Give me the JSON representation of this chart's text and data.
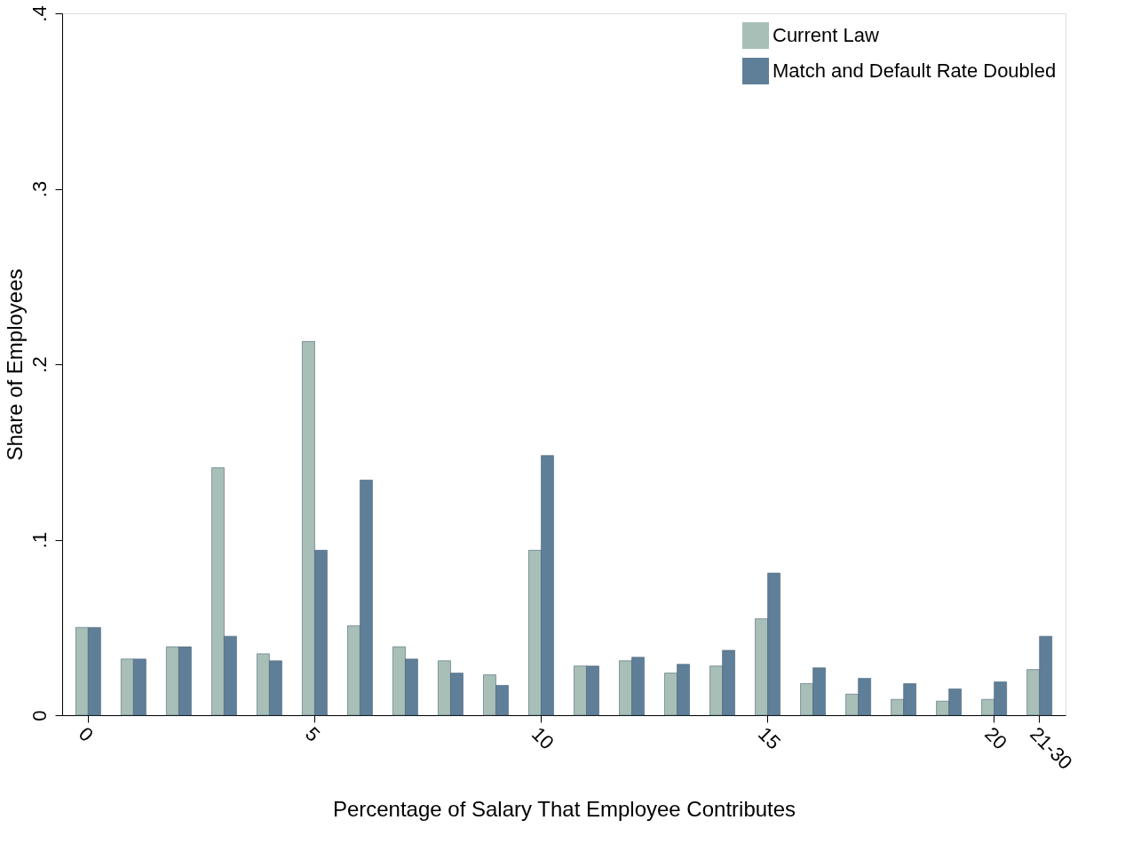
{
  "chart_data": {
    "type": "bar",
    "xlabel": "Percentage of Salary That Employee Contributes",
    "ylabel": "Share of Employees",
    "categories": [
      "0",
      null,
      null,
      null,
      null,
      "5",
      null,
      null,
      null,
      null,
      "10",
      null,
      null,
      null,
      null,
      "15",
      null,
      null,
      null,
      null,
      "20",
      "21-30"
    ],
    "series": [
      {
        "name": "Current Law",
        "color": "#a8bfb8",
        "values": [
          0.05,
          0.032,
          0.039,
          0.141,
          0.035,
          0.213,
          0.051,
          0.039,
          0.031,
          0.023,
          0.094,
          0.028,
          0.031,
          0.024,
          0.028,
          0.055,
          0.018,
          0.012,
          0.009,
          0.008,
          0.009,
          0.026
        ]
      },
      {
        "name": "Match and Default Rate Doubled",
        "color": "#5f7f99",
        "values": [
          0.05,
          0.032,
          0.039,
          0.045,
          0.031,
          0.094,
          0.134,
          0.032,
          0.024,
          0.017,
          0.148,
          0.028,
          0.033,
          0.029,
          0.037,
          0.081,
          0.027,
          0.021,
          0.018,
          0.015,
          0.019,
          0.045
        ]
      }
    ],
    "ylim": [
      0,
      0.4
    ],
    "yticks": [
      0,
      {
        "value": 0.1,
        "label": ".1"
      },
      {
        "value": 0.2,
        "label": ".2"
      },
      {
        "value": 0.3,
        "label": ".3"
      },
      {
        "value": 0.4,
        "label": ".4"
      }
    ],
    "grid": false,
    "legend": "top right"
  }
}
